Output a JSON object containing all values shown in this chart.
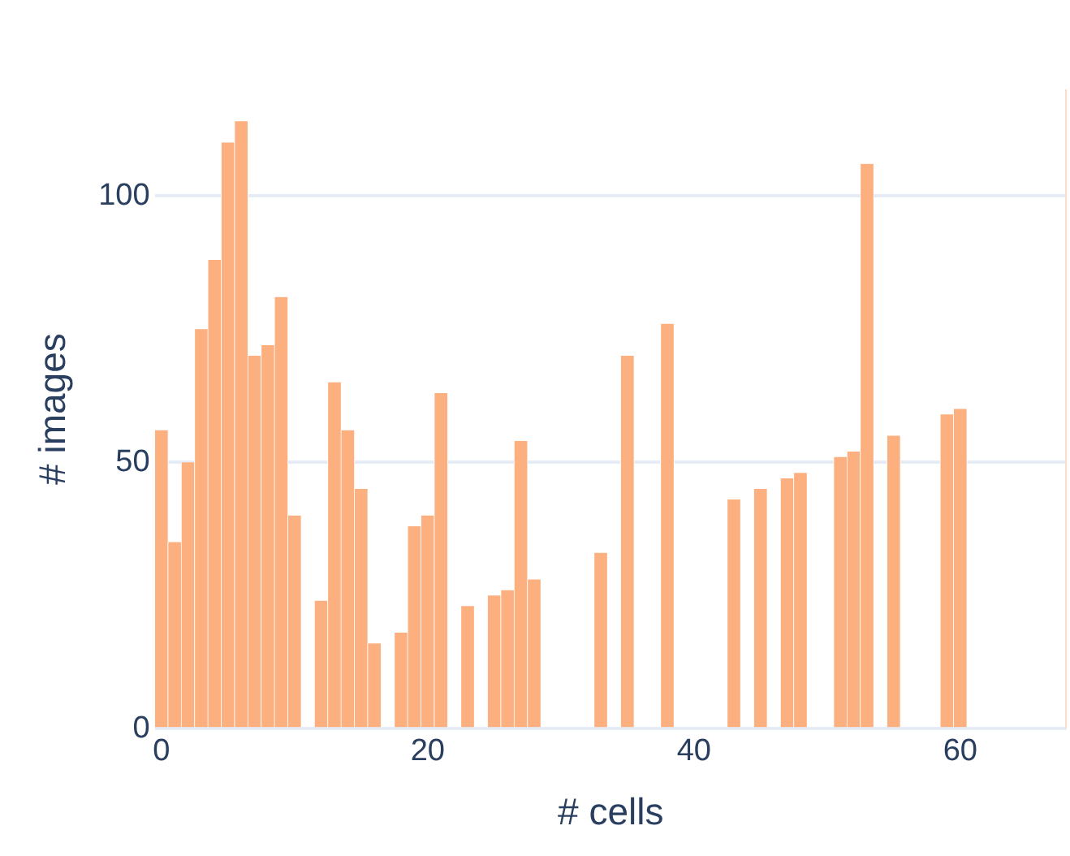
{
  "chart_data": {
    "type": "histogram",
    "xlabel": "# cells",
    "ylabel": "# images",
    "bins": [
      -0.5,
      0.5,
      1.5,
      2.5,
      3.5,
      4.5,
      5.5,
      6.5,
      7.5,
      8.5,
      9.5,
      10.5,
      11.5,
      12.5,
      13.5,
      14.5,
      15.5,
      16.5,
      17.5,
      18.5,
      19.5,
      20.5,
      21.5,
      22.5,
      23.5,
      24.5,
      25.5,
      26.5,
      27.5,
      28.5,
      29.5,
      30.5,
      31.5,
      32.5,
      33.5,
      34.5,
      35.5,
      36.5,
      37.5,
      38.5,
      39.5,
      40.5,
      41.5,
      42.5,
      43.5,
      44.5,
      45.5,
      46.5,
      47.5,
      48.5,
      49.5,
      50.5,
      51.5,
      52.5,
      53.5,
      54.5,
      55.5,
      56.5,
      57.5,
      58.5,
      59.5,
      60.5
    ],
    "values": [
      56,
      35,
      50,
      75,
      88,
      110,
      114,
      70,
      72,
      81,
      40,
      0,
      24,
      65,
      56,
      45,
      16,
      0,
      18,
      38,
      40,
      63,
      0,
      23,
      0,
      25,
      26,
      54,
      28,
      0,
      0,
      0,
      0,
      33,
      0,
      70,
      0,
      0,
      76,
      0,
      0,
      0,
      0,
      43,
      0,
      45,
      0,
      47,
      48,
      0,
      0,
      51,
      52,
      106,
      0,
      55,
      0,
      0,
      0,
      59,
      60
    ],
    "color": "#fdb07f",
    "xlim": [
      -0.5,
      68
    ],
    "xticks": [
      0,
      20,
      40,
      60
    ],
    "ylim": [
      0,
      120
    ],
    "yticks": [
      0,
      50,
      100
    ],
    "grid": "y"
  }
}
